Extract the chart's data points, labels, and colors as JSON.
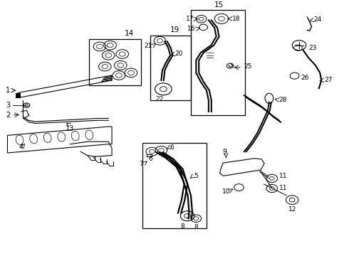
{
  "bg_color": "#ffffff",
  "line_color": "#000000",
  "text_color": "#000000",
  "fig_width": 4.9,
  "fig_height": 3.6,
  "dpi": 100
}
